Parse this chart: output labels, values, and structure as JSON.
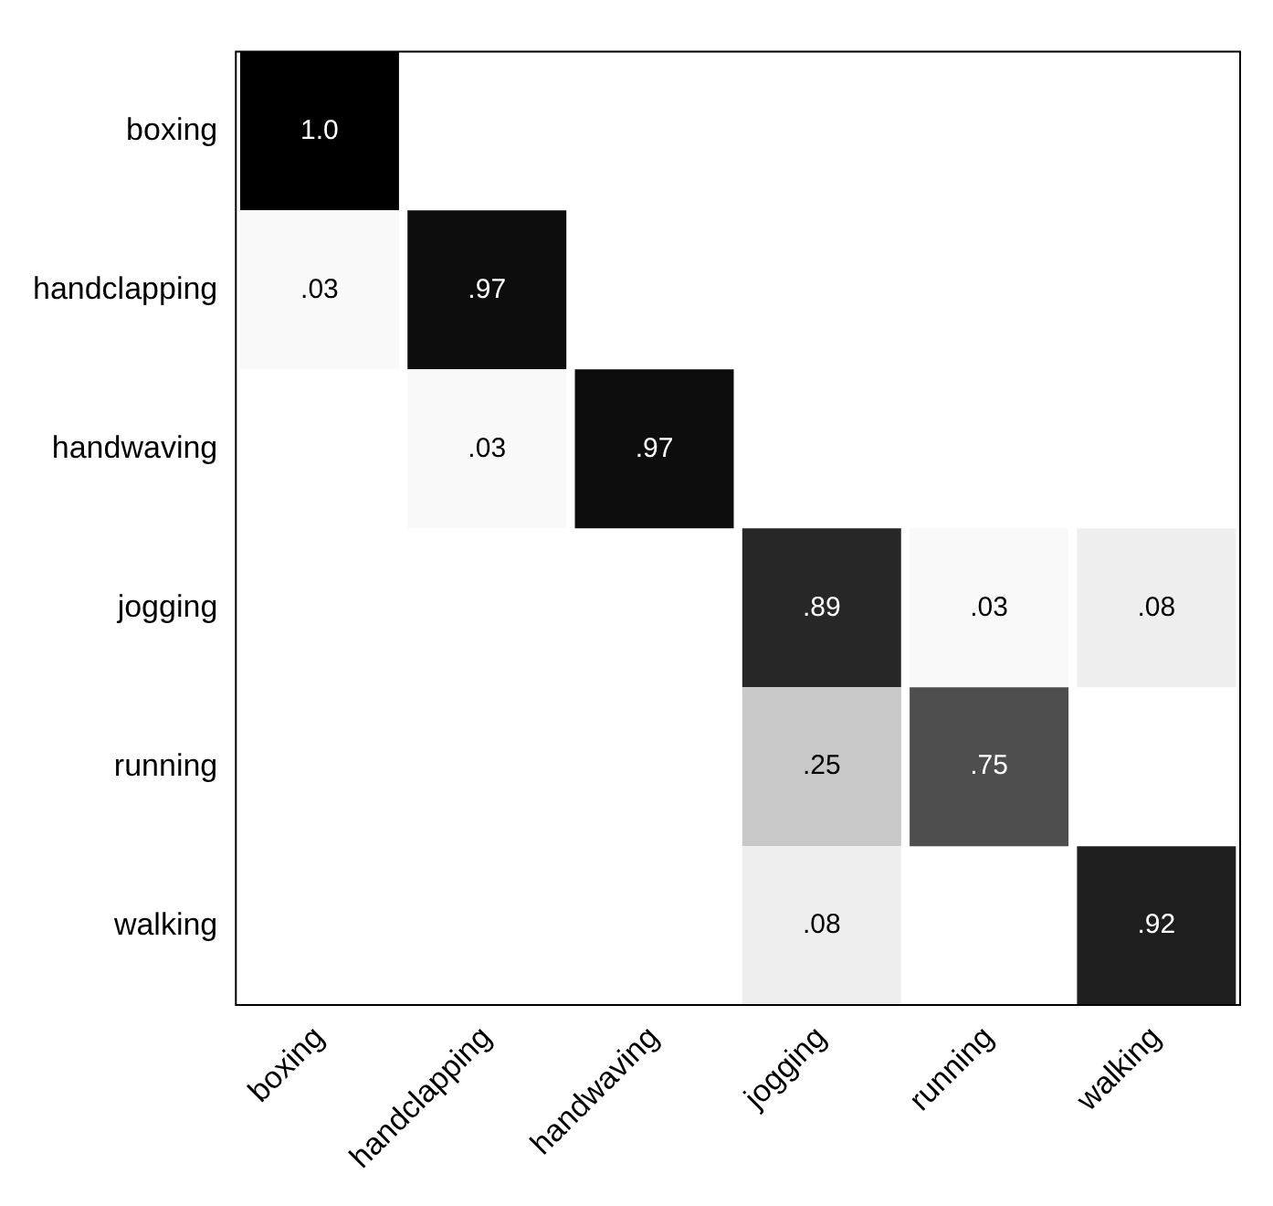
{
  "chart_data": {
    "type": "heatmap",
    "categories": [
      "boxing",
      "handclapping",
      "handwaving",
      "jogging",
      "running",
      "walking"
    ],
    "y_categories": [
      "boxing",
      "handclapping",
      "handwaving",
      "jogging",
      "running",
      "walking"
    ],
    "cells": [
      [
        1.0,
        null,
        null,
        null,
        null,
        null
      ],
      [
        0.03,
        0.97,
        null,
        null,
        null,
        null
      ],
      [
        null,
        0.03,
        0.97,
        null,
        null,
        null
      ],
      [
        null,
        null,
        null,
        0.89,
        0.03,
        0.08
      ],
      [
        null,
        null,
        null,
        0.25,
        0.75,
        null
      ],
      [
        null,
        null,
        null,
        0.08,
        null,
        0.92
      ]
    ],
    "cell_labels": [
      [
        "1.0",
        null,
        null,
        null,
        null,
        null
      ],
      [
        ".03",
        ".97",
        null,
        null,
        null,
        null
      ],
      [
        null,
        ".03",
        ".97",
        null,
        null,
        null
      ],
      [
        null,
        null,
        null,
        ".89",
        ".03",
        ".08"
      ],
      [
        null,
        null,
        null,
        ".25",
        ".75",
        null
      ],
      [
        null,
        null,
        null,
        ".08",
        null,
        ".92"
      ]
    ]
  }
}
